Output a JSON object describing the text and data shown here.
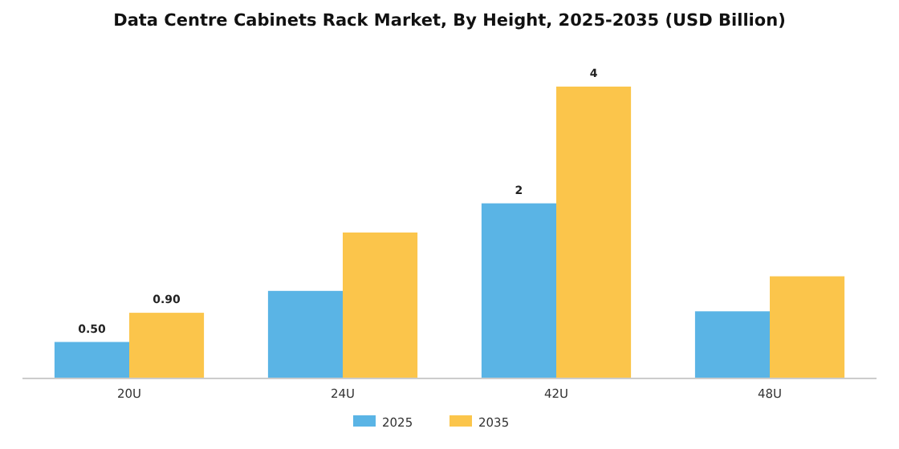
{
  "chart_data": {
    "type": "bar",
    "title": "Data Centre Cabinets Rack Market, By Height, 2025-2035 (USD Billion)",
    "categories": [
      "20U",
      "24U",
      "42U",
      "48U"
    ],
    "series": [
      {
        "name": "2025",
        "color": "#5ab4e5",
        "values": [
          0.5,
          1.2,
          2.4,
          0.92
        ],
        "value_labels": [
          "0.50",
          null,
          "2",
          null
        ]
      },
      {
        "name": "2035",
        "color": "#fbc54b",
        "values": [
          0.9,
          2.0,
          4.0,
          1.4
        ],
        "value_labels": [
          "0.90",
          null,
          "4",
          null
        ]
      }
    ],
    "legend": "bottom"
  }
}
